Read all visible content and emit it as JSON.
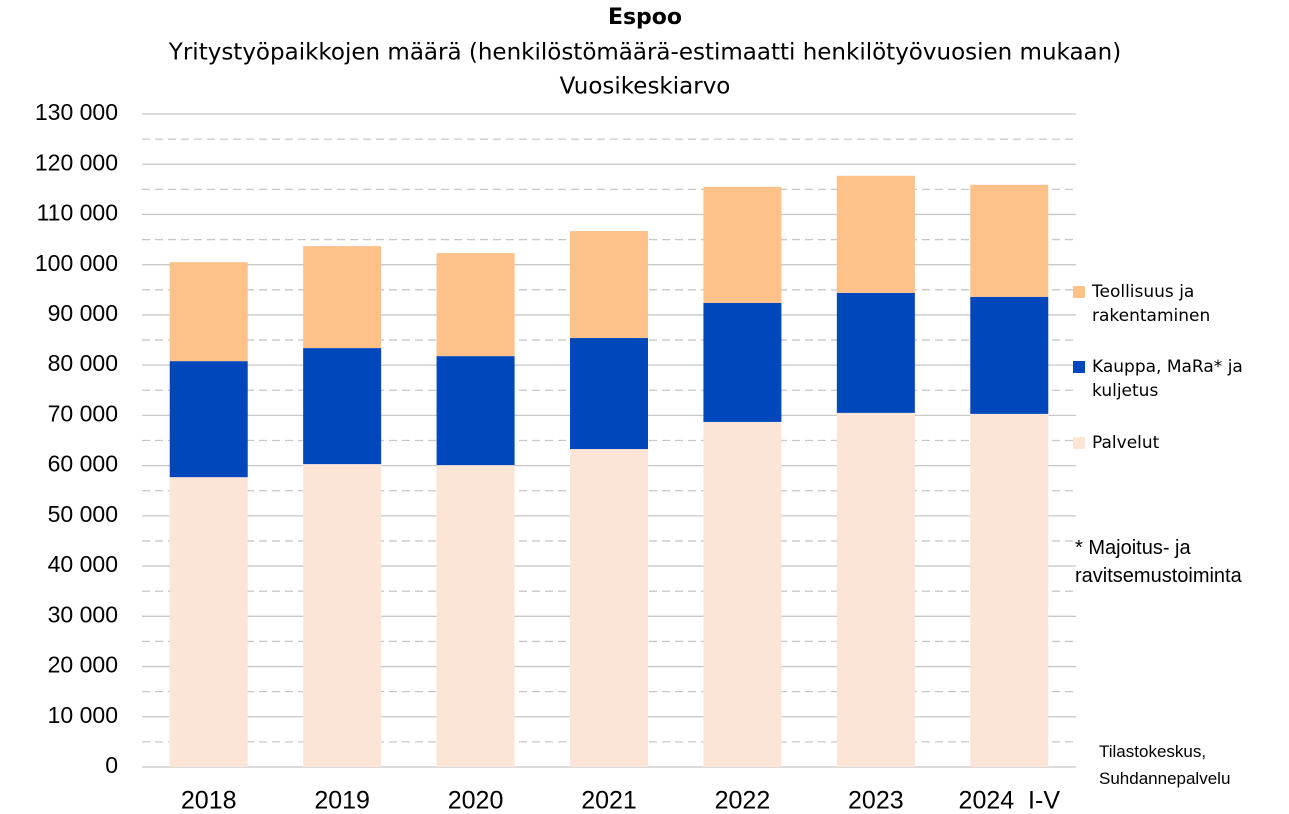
{
  "chart_data": {
    "type": "stacked_bar",
    "title": "Espoo",
    "subtitle": [
      "Yritystyöpaikkojen määrä (henkilöstömäärä-estimaatti henkilötyövuosien mukaan)",
      "Vuosikeskiarvo"
    ],
    "categories": [
      "2018",
      "2019",
      "2020",
      "2021",
      "2022",
      "2023",
      "2024  I-V"
    ],
    "series": [
      {
        "name": "Palvelut",
        "color": "#fce4d6",
        "values": [
          57700,
          60300,
          60100,
          63300,
          68700,
          70500,
          70300
        ]
      },
      {
        "name": "Kauppa, MaRa* ja kuljetus",
        "color": "#0047bb",
        "values": [
          23100,
          23100,
          21700,
          22100,
          23700,
          23900,
          23300
        ]
      },
      {
        "name": "Teollisuus ja rakentaminen",
        "color": "#ffc18a",
        "values": [
          19700,
          20300,
          20500,
          21300,
          23100,
          23300,
          22300
        ]
      }
    ],
    "ylim": [
      0,
      130000
    ],
    "yticks": [
      0,
      {
        "value": 10000,
        "label": "10 000"
      },
      {
        "value": 20000,
        "label": "20 000"
      },
      {
        "value": 30000,
        "label": "30 000"
      },
      {
        "value": 40000,
        "label": "40 000"
      },
      {
        "value": 50000,
        "label": "50 000"
      },
      {
        "value": 60000,
        "label": "60 000"
      },
      {
        "value": 70000,
        "label": "70 000"
      },
      {
        "value": 80000,
        "label": "80 000"
      },
      {
        "value": 90000,
        "label": "90 000"
      },
      {
        "value": 100000,
        "label": "100 000"
      },
      {
        "value": 110000,
        "label": "110 000"
      },
      {
        "value": 120000,
        "label": "120 000"
      },
      {
        "value": 130000,
        "label": "130 000"
      }
    ],
    "minor_yticks": [
      5000,
      15000,
      25000,
      35000,
      45000,
      55000,
      65000,
      75000,
      85000,
      95000,
      105000,
      115000,
      125000
    ],
    "grid": true,
    "legend": "right",
    "annotations": [
      "* Majoitus- ja ravitsemustoiminta",
      "Tilastokeskus, Suhdannepalvelu"
    ]
  }
}
